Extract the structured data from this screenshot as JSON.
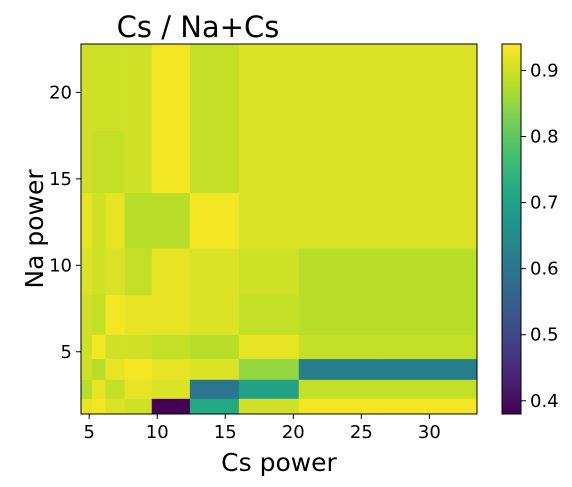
{
  "chart_data": {
    "type": "heatmap",
    "title": "Cs / Na+Cs",
    "xlabel": "Cs power",
    "ylabel": "Na power",
    "x_ticks": [
      5,
      10,
      15,
      20,
      25,
      30
    ],
    "y_ticks": [
      5,
      10,
      15,
      20
    ],
    "xlim": [
      4.4,
      33.5
    ],
    "ylim": [
      1.4,
      22.8
    ],
    "colorbar": {
      "min": 0.38,
      "max": 0.94,
      "ticks": [
        0.4,
        0.5,
        0.6,
        0.7,
        0.8,
        0.9
      ]
    },
    "x_edges": [
      4.4,
      5.2,
      6.2,
      7.6,
      9.6,
      12.4,
      16.0,
      20.4,
      26.6,
      33.5
    ],
    "y_edges": [
      1.4,
      2.3,
      3.4,
      4.6,
      6.0,
      8.3,
      11.0,
      14.2,
      17.8,
      22.8
    ],
    "values": [
      [
        0.92,
        0.93,
        0.91,
        0.9,
        0.38,
        0.72,
        0.9,
        0.93,
        0.93
      ],
      [
        0.88,
        0.92,
        0.89,
        0.92,
        0.91,
        0.6,
        0.7,
        0.89,
        0.89
      ],
      [
        0.9,
        0.88,
        0.92,
        0.93,
        0.92,
        0.91,
        0.85,
        0.62,
        0.62
      ],
      [
        0.9,
        0.93,
        0.9,
        0.9,
        0.89,
        0.88,
        0.92,
        0.89,
        0.89
      ],
      [
        0.9,
        0.89,
        0.93,
        0.92,
        0.92,
        0.91,
        0.89,
        0.88,
        0.88
      ],
      [
        0.91,
        0.9,
        0.91,
        0.89,
        0.92,
        0.91,
        0.9,
        0.88,
        0.88
      ],
      [
        0.92,
        0.9,
        0.92,
        0.88,
        0.88,
        0.93,
        0.91,
        0.91,
        0.91
      ],
      [
        0.9,
        0.89,
        0.89,
        0.9,
        0.93,
        0.89,
        0.91,
        0.91,
        0.91
      ],
      [
        0.9,
        0.9,
        0.9,
        0.9,
        0.93,
        0.89,
        0.91,
        0.91,
        0.91
      ]
    ]
  }
}
